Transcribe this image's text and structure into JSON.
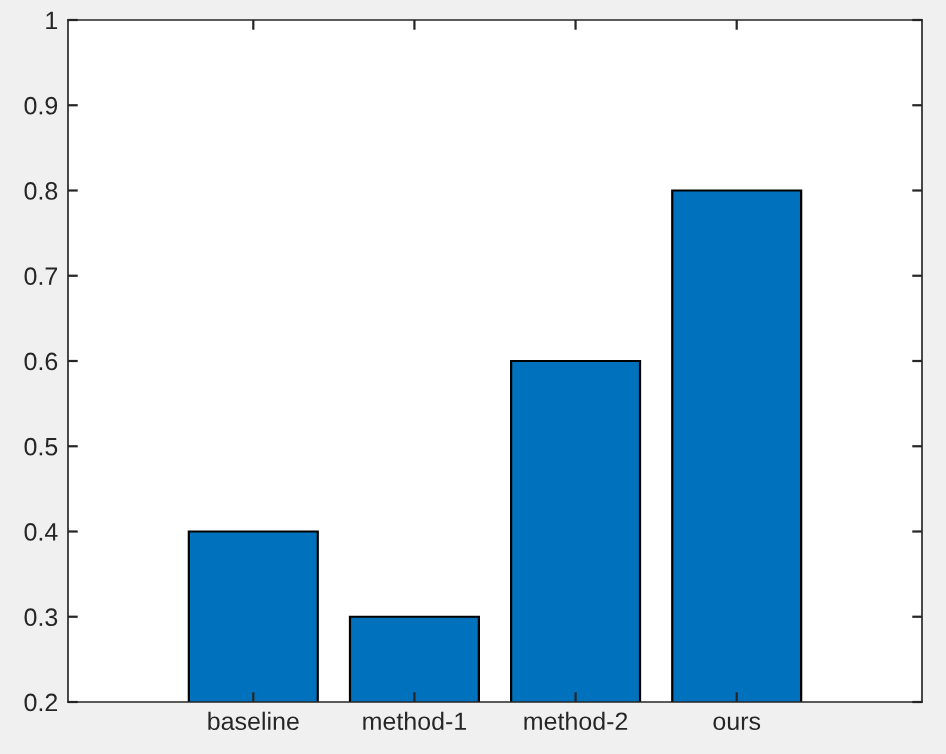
{
  "chart_data": {
    "type": "bar",
    "categories": [
      "baseline",
      "method-1",
      "method-2",
      "ours"
    ],
    "values": [
      0.4,
      0.3,
      0.6,
      0.8
    ],
    "color": "#0072bd",
    "ylim": [
      0.2,
      1
    ],
    "yticks": [
      0.2,
      0.3,
      0.4,
      0.5,
      0.6,
      0.7,
      0.8,
      0.9,
      1
    ],
    "grid": false,
    "legend": false
  }
}
